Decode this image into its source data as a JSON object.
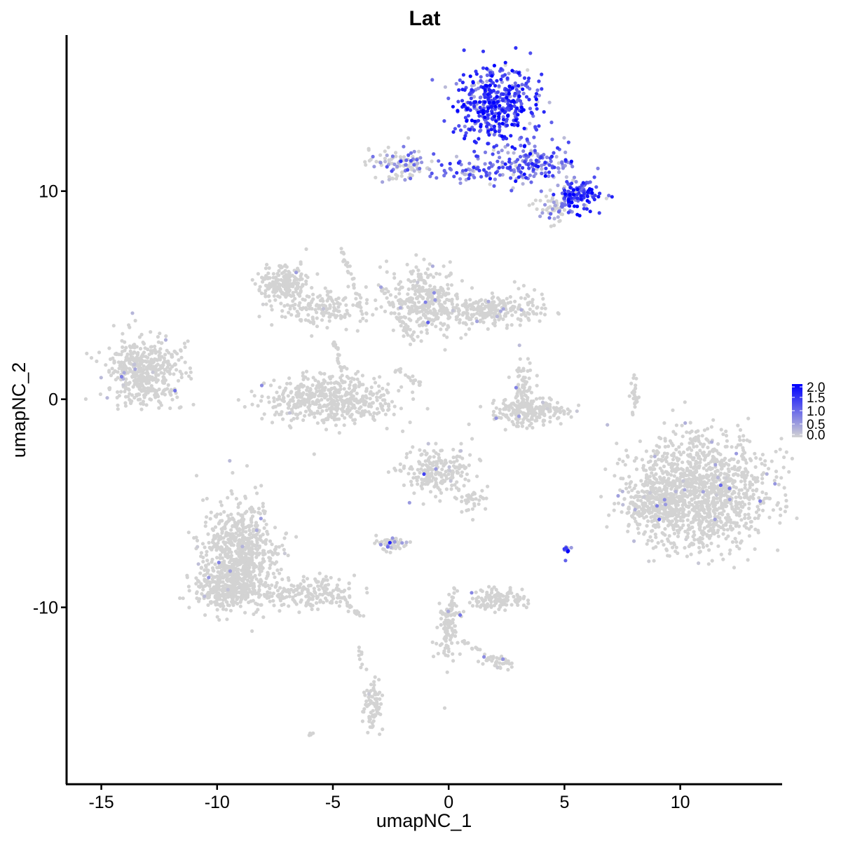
{
  "chart_data": {
    "type": "scatter",
    "title": "Lat",
    "xlabel": "umapNC_1",
    "ylabel": "umapNC_2",
    "xlim": [
      -16.5,
      14.4
    ],
    "ylim": [
      -18.5,
      17.5
    ],
    "x_ticks": [
      -15,
      -10,
      -5,
      0,
      5,
      10
    ],
    "x_tick_labels": [
      "-15",
      "-10",
      "-5",
      "0",
      "5",
      "10"
    ],
    "y_ticks": [
      -10,
      0,
      10
    ],
    "y_tick_labels": [
      "-10",
      "0",
      "10"
    ],
    "grid": false,
    "color_scale": {
      "low": "#d3d3d3",
      "high": "#0000ff",
      "min": 0.0,
      "max": 2.0,
      "breaks": [
        2.0,
        1.5,
        1.0,
        0.5,
        0.0
      ],
      "labels": [
        "2.0",
        "1.5",
        "1.0",
        "0.5",
        "0.0"
      ]
    },
    "legend_position": "right",
    "clusters": [
      {
        "x": 2.0,
        "y": 14.2,
        "sx": 0.9,
        "sy": 0.9,
        "n": 420,
        "expr": 1.3
      },
      {
        "x": 3.6,
        "y": 11.3,
        "sx": 1.0,
        "sy": 0.5,
        "n": 170,
        "expr": 1.0
      },
      {
        "x": 5.6,
        "y": 9.8,
        "sx": 0.5,
        "sy": 0.35,
        "n": 120,
        "expr": 1.4
      },
      {
        "x": 4.5,
        "y": 9.2,
        "sx": 0.4,
        "sy": 0.3,
        "n": 60,
        "expr": 0.4
      },
      {
        "x": -2.0,
        "y": 11.3,
        "sx": 0.7,
        "sy": 0.35,
        "n": 110,
        "expr": 0.5
      },
      {
        "x": 0.8,
        "y": 11.0,
        "sx": 0.9,
        "sy": 0.3,
        "n": 60,
        "expr": 0.9
      },
      {
        "x": -13.2,
        "y": 1.3,
        "sx": 0.8,
        "sy": 0.75,
        "n": 460,
        "expr": 0.05
      },
      {
        "x": -7.2,
        "y": 5.5,
        "sx": 0.55,
        "sy": 0.4,
        "n": 200,
        "expr": 0.0
      },
      {
        "x": -5.5,
        "y": 4.3,
        "sx": 1.0,
        "sy": 0.45,
        "n": 150,
        "expr": 0.0
      },
      {
        "x": -5.0,
        "y": 0.0,
        "sx": 1.4,
        "sy": 0.55,
        "n": 500,
        "expr": 0.0
      },
      {
        "x": -1.0,
        "y": 4.7,
        "sx": 0.8,
        "sy": 0.9,
        "n": 320,
        "expr": 0.02
      },
      {
        "x": 1.8,
        "y": 4.3,
        "sx": 1.2,
        "sy": 0.35,
        "n": 260,
        "expr": 0.0
      },
      {
        "x": 3.5,
        "y": -0.6,
        "sx": 0.85,
        "sy": 0.35,
        "n": 220,
        "expr": 0.03
      },
      {
        "x": 3.2,
        "y": 0.7,
        "sx": 0.25,
        "sy": 0.5,
        "n": 60,
        "expr": 0.0
      },
      {
        "x": 10.8,
        "y": -4.6,
        "sx": 1.45,
        "sy": 1.35,
        "n": 1300,
        "expr": 0.02
      },
      {
        "x": 9.0,
        "y": -5.1,
        "sx": 0.7,
        "sy": 0.6,
        "n": 180,
        "expr": 0.02
      },
      {
        "x": -0.5,
        "y": -3.5,
        "sx": 0.75,
        "sy": 0.55,
        "n": 220,
        "expr": 0.04
      },
      {
        "x": 1.1,
        "y": -4.9,
        "sx": 0.3,
        "sy": 0.3,
        "n": 35,
        "expr": 0.0
      },
      {
        "x": -2.4,
        "y": -6.9,
        "sx": 0.35,
        "sy": 0.2,
        "n": 50,
        "expr": 0.2
      },
      {
        "x": -9.0,
        "y": -7.5,
        "sx": 0.8,
        "sy": 1.2,
        "n": 700,
        "expr": 0.01
      },
      {
        "x": -9.6,
        "y": -9.2,
        "sx": 0.75,
        "sy": 0.5,
        "n": 260,
        "expr": 0.0
      },
      {
        "x": -6.0,
        "y": -9.3,
        "sx": 1.0,
        "sy": 0.35,
        "n": 180,
        "expr": 0.0
      },
      {
        "x": 2.2,
        "y": -9.6,
        "sx": 0.55,
        "sy": 0.25,
        "n": 120,
        "expr": 0.05
      },
      {
        "x": 0.0,
        "y": -11.0,
        "sx": 0.3,
        "sy": 0.8,
        "n": 90,
        "expr": 0.03
      },
      {
        "x": -3.3,
        "y": -14.8,
        "sx": 0.2,
        "sy": 0.6,
        "n": 80,
        "expr": 0.0
      },
      {
        "x": 2.1,
        "y": -12.6,
        "sx": 0.35,
        "sy": 0.2,
        "n": 40,
        "expr": 0.0
      },
      {
        "x": 5.1,
        "y": -7.3,
        "sx": 0.1,
        "sy": 0.15,
        "n": 14,
        "expr": 1.0
      },
      {
        "x": 8.0,
        "y": 0.3,
        "sx": 0.08,
        "sy": 0.5,
        "n": 25,
        "expr": 0.0
      }
    ],
    "trails": [
      {
        "x1": -1.5,
        "y1": 2.8,
        "x2": -3.0,
        "y2": 5.5,
        "n": 30
      },
      {
        "x1": -3.6,
        "y1": 3.8,
        "x2": -4.7,
        "y2": 7.4,
        "n": 35
      },
      {
        "x1": -4.9,
        "y1": 2.8,
        "x2": -4.5,
        "y2": 1.0,
        "n": 20
      },
      {
        "x1": -2.2,
        "y1": 1.4,
        "x2": -1.1,
        "y2": 0.6,
        "n": 15
      },
      {
        "x1": -12.0,
        "y1": 2.0,
        "x2": -11.2,
        "y2": 2.8,
        "n": 12
      },
      {
        "x1": 0.3,
        "y1": -9.0,
        "x2": -0.2,
        "y2": -11.8,
        "n": 30
      },
      {
        "x1": 0.6,
        "y1": -11.6,
        "x2": 1.8,
        "y2": -12.4,
        "n": 12
      },
      {
        "x1": -4.8,
        "y1": -9.5,
        "x2": -3.8,
        "y2": -10.4,
        "n": 20
      },
      {
        "x1": -3.8,
        "y1": -11.8,
        "x2": -3.7,
        "y2": -13.0,
        "n": 8
      },
      {
        "x1": -6.1,
        "y1": -16.2,
        "x2": -5.8,
        "y2": -16.0,
        "n": 5
      }
    ]
  }
}
